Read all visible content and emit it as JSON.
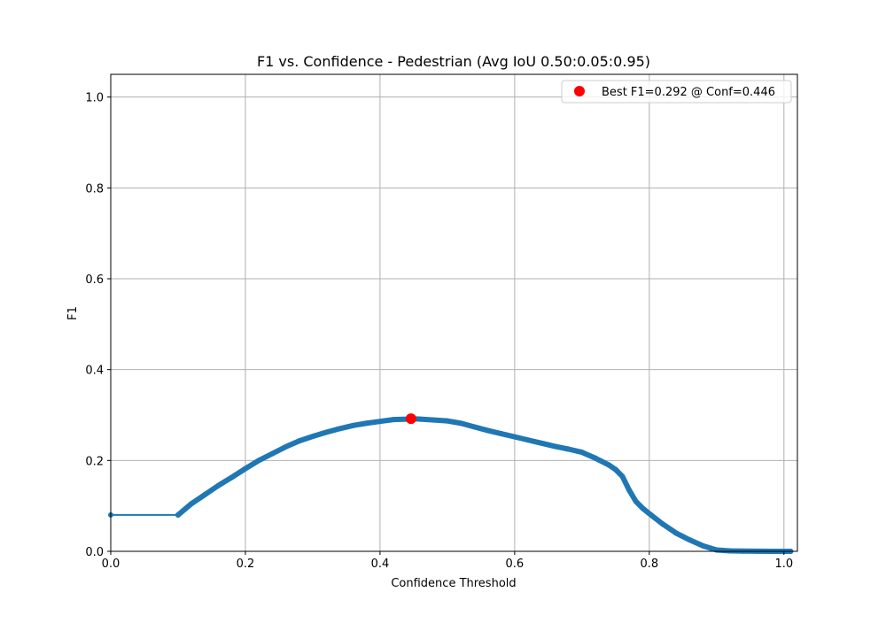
{
  "chart_data": {
    "type": "line",
    "title": "F1 vs. Confidence - Pedestrian (Avg IoU 0.50:0.05:0.95)",
    "xlabel": "Confidence Threshold",
    "ylabel": "F1",
    "xlim": [
      0.0,
      1.02
    ],
    "ylim": [
      0.0,
      1.05
    ],
    "xticks": [
      "0.0",
      "0.2",
      "0.4",
      "0.6",
      "0.8",
      "1.0"
    ],
    "yticks": [
      "0.0",
      "0.2",
      "0.4",
      "0.6",
      "0.8",
      "1.0"
    ],
    "grid": true,
    "legend_position": "top-right",
    "colors": {
      "series": "#1f77b4",
      "best": "#ff0000",
      "grid": "#b0b0b0"
    },
    "series": [
      {
        "x": [
          0.0,
          0.1,
          0.1,
          0.12,
          0.14,
          0.16,
          0.18,
          0.2,
          0.22,
          0.24,
          0.26,
          0.28,
          0.3,
          0.32,
          0.34,
          0.36,
          0.38,
          0.4,
          0.42,
          0.44,
          0.446,
          0.46,
          0.48,
          0.5,
          0.52,
          0.54,
          0.56,
          0.58,
          0.6,
          0.62,
          0.64,
          0.66,
          0.68,
          0.7,
          0.72,
          0.74,
          0.75,
          0.76,
          0.77,
          0.78,
          0.79,
          0.8,
          0.82,
          0.84,
          0.86,
          0.88,
          0.9,
          0.92,
          0.94,
          0.96,
          0.98,
          1.0,
          1.01
        ],
        "values": [
          0.08,
          0.08,
          0.08,
          0.105,
          0.125,
          0.145,
          0.163,
          0.182,
          0.2,
          0.215,
          0.23,
          0.243,
          0.253,
          0.262,
          0.27,
          0.277,
          0.282,
          0.286,
          0.29,
          0.291,
          0.292,
          0.291,
          0.289,
          0.287,
          0.282,
          0.274,
          0.266,
          0.259,
          0.252,
          0.245,
          0.238,
          0.231,
          0.225,
          0.218,
          0.205,
          0.19,
          0.18,
          0.165,
          0.135,
          0.11,
          0.095,
          0.083,
          0.06,
          0.04,
          0.025,
          0.012,
          0.003,
          0.001,
          0.0005,
          0.0002,
          0.0,
          0.0,
          0.0
        ]
      }
    ],
    "best": {
      "x": 0.446,
      "y": 0.292,
      "label": "Best F1=0.292 @ Conf=0.446"
    }
  }
}
